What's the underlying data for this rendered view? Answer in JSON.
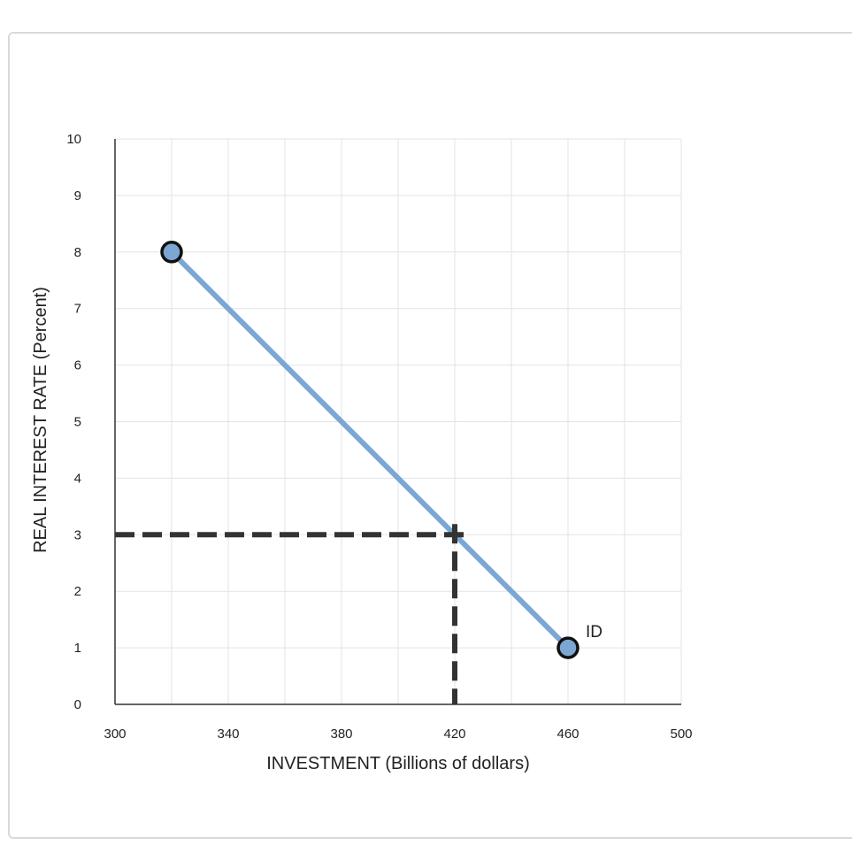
{
  "chart_data": {
    "type": "line",
    "xlabel": "INVESTMENT (Billions of dollars)",
    "ylabel": "REAL INTEREST RATE (Percent)",
    "xlim": [
      300,
      500
    ],
    "ylim": [
      0,
      10
    ],
    "x_ticks": [
      300,
      340,
      380,
      420,
      460,
      500
    ],
    "y_ticks": [
      0,
      1,
      2,
      3,
      4,
      5,
      6,
      7,
      8,
      9,
      10
    ],
    "x_gridlines": [
      300,
      320,
      340,
      360,
      380,
      400,
      420,
      440,
      460,
      480,
      500
    ],
    "y_gridlines": [
      0,
      1,
      2,
      3,
      4,
      5,
      6,
      7,
      8,
      9,
      10
    ],
    "grid": true,
    "series": [
      {
        "name": "ID",
        "x": [
          320,
          460
        ],
        "y": [
          8,
          1
        ],
        "color": "#7ba7d2"
      }
    ],
    "reference_point": {
      "x": 420,
      "y": 3,
      "style": "dashed",
      "color": "#333333"
    }
  }
}
